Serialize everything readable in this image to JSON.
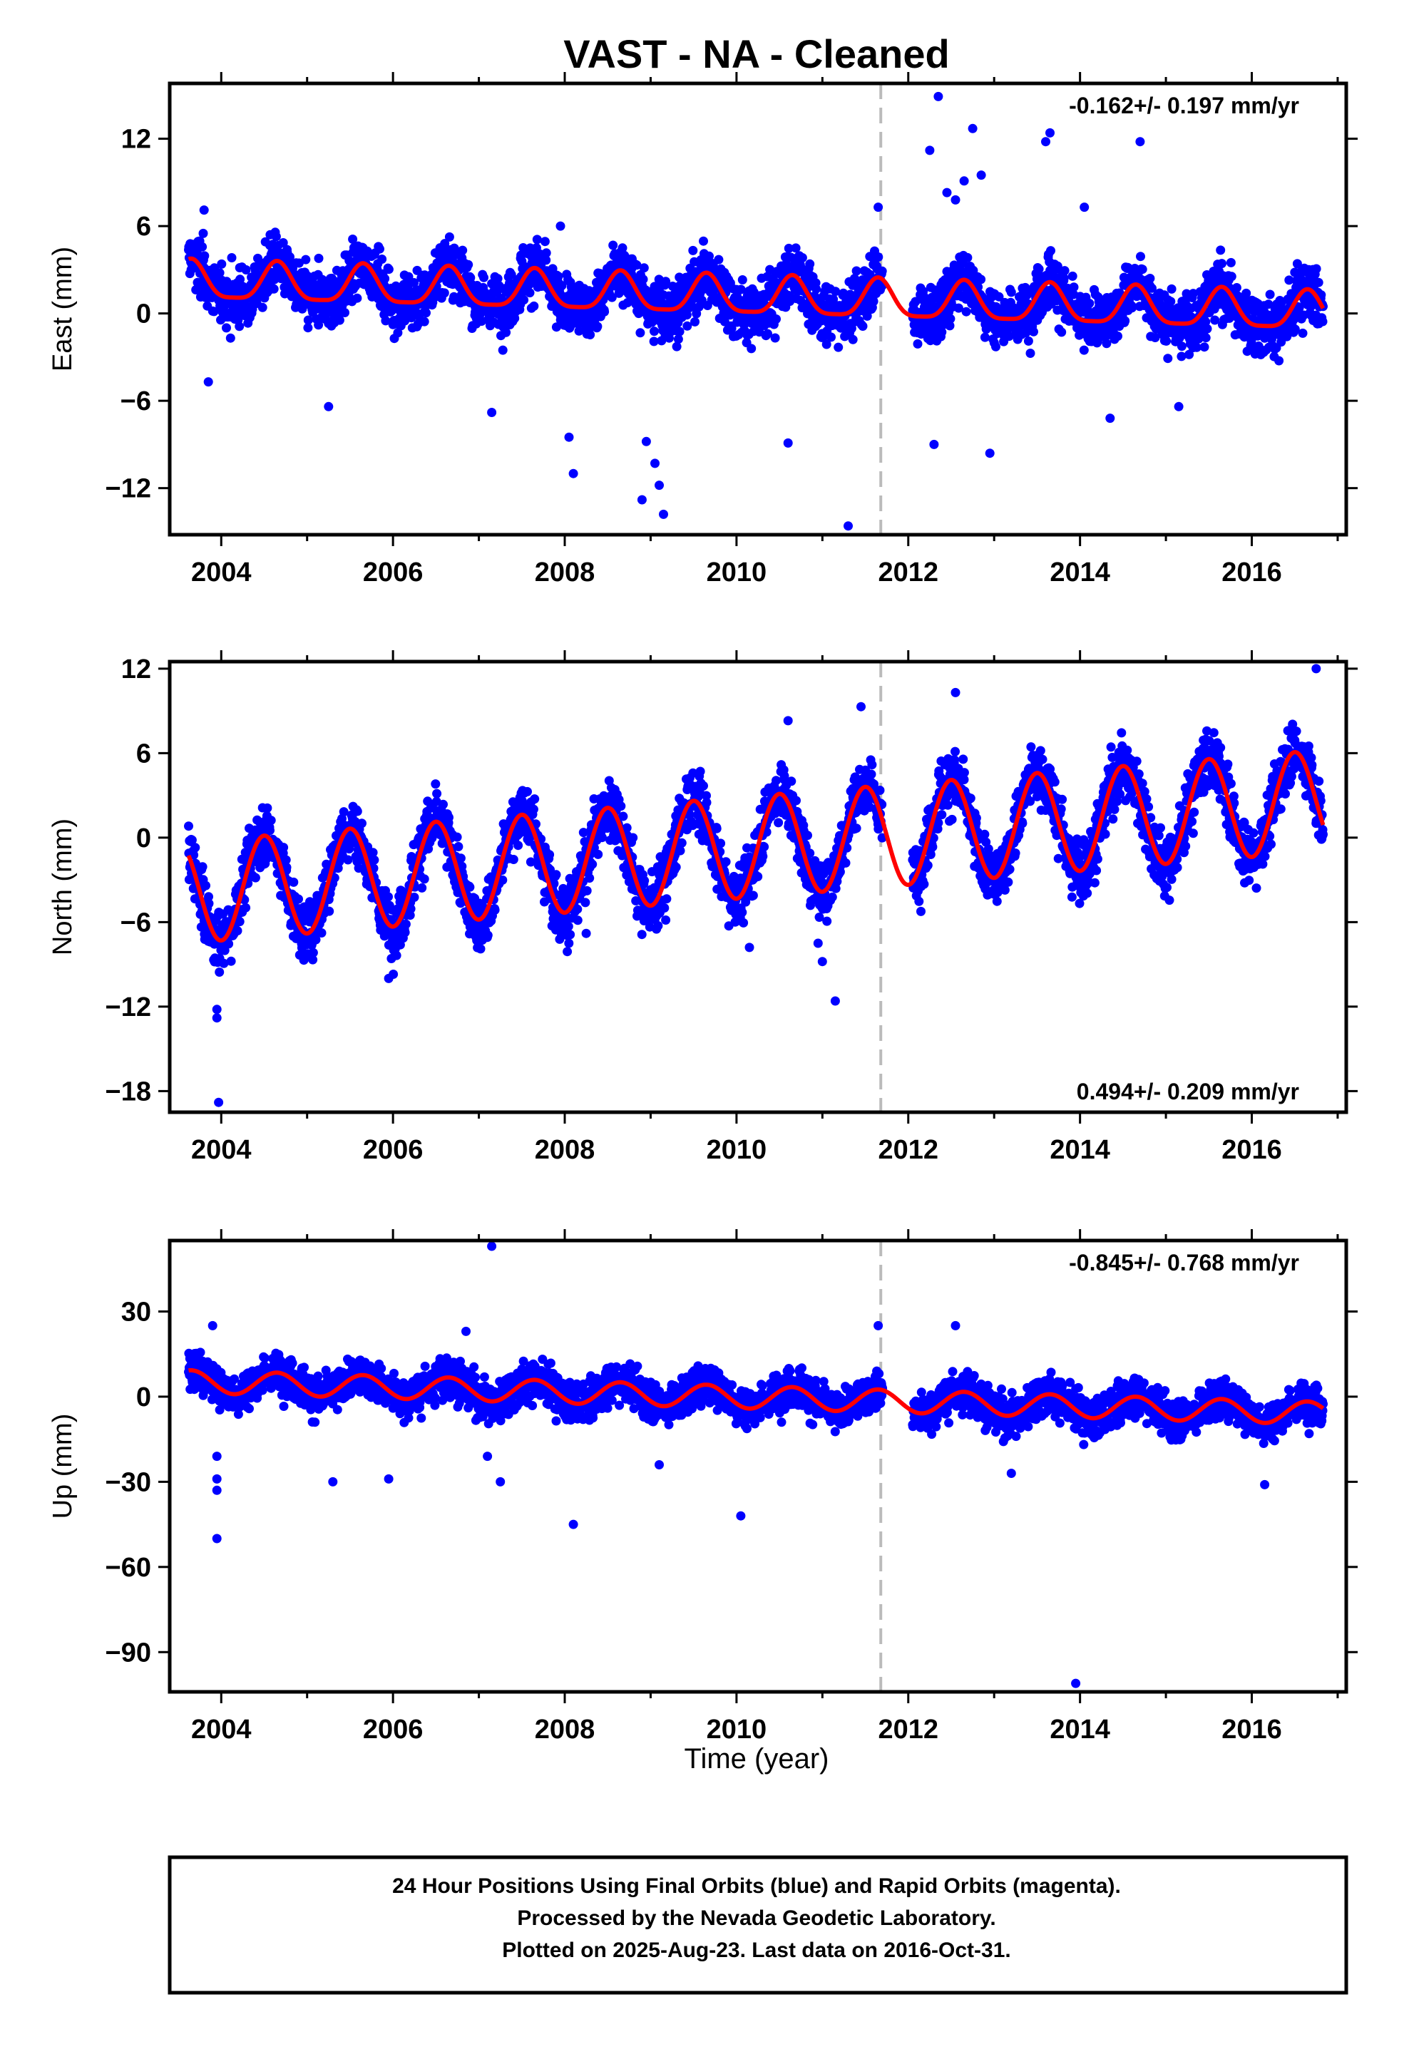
{
  "title": "VAST  - NA - Cleaned",
  "xlabel": "Time (year)",
  "footer": {
    "line1": "24 Hour Positions Using Final Orbits (blue) and Rapid Orbits (magenta).",
    "line2": "Processed by the Nevada Geodetic Laboratory.",
    "line3": "Plotted on 2025-Aug-23. Last data on 2016-Oct-31."
  },
  "colors": {
    "points": "#0000ff",
    "fit": "#ff0000",
    "break_line": "#bbbbbb",
    "frame": "#000000"
  },
  "chart_data": [
    {
      "type": "scatter",
      "ylabel": "East (mm)",
      "rate": "-0.162+/- 0.197 mm/yr",
      "rate_position": "top-right",
      "xlim": [
        2003.4,
        2017.1
      ],
      "ylim": [
        -15.2,
        15.8
      ],
      "yticks": [
        -12,
        -6,
        0,
        6,
        12
      ],
      "xticks": [
        2004,
        2006,
        2008,
        2010,
        2012,
        2014,
        2016
      ],
      "break_year": 2011.68,
      "data_start": 2003.62,
      "data_end": 2016.83,
      "gap": [
        2011.7,
        2012.05
      ],
      "fit": {
        "offset": 1.6,
        "slope": -0.162,
        "amplitude": 1.3,
        "phase_year": 0.65,
        "sharpness": 2.0
      },
      "scatter_sigma": 1.4,
      "outliers": [
        {
          "x": 2003.8,
          "y": 7.1
        },
        {
          "x": 2003.85,
          "y": -4.7
        },
        {
          "x": 2005.25,
          "y": -6.4
        },
        {
          "x": 2007.15,
          "y": -6.8
        },
        {
          "x": 2007.95,
          "y": 6.0
        },
        {
          "x": 2008.05,
          "y": -8.5
        },
        {
          "x": 2008.1,
          "y": -11.0
        },
        {
          "x": 2008.9,
          "y": -12.8
        },
        {
          "x": 2008.95,
          "y": -8.8
        },
        {
          "x": 2009.05,
          "y": -10.3
        },
        {
          "x": 2009.1,
          "y": -11.8
        },
        {
          "x": 2009.15,
          "y": -13.8
        },
        {
          "x": 2010.6,
          "y": -8.9
        },
        {
          "x": 2011.3,
          "y": -14.6
        },
        {
          "x": 2011.65,
          "y": 7.3
        },
        {
          "x": 2012.25,
          "y": 11.2
        },
        {
          "x": 2012.3,
          "y": -9.0
        },
        {
          "x": 2012.35,
          "y": 14.9
        },
        {
          "x": 2012.45,
          "y": 8.3
        },
        {
          "x": 2012.55,
          "y": 7.8
        },
        {
          "x": 2012.65,
          "y": 9.1
        },
        {
          "x": 2012.75,
          "y": 12.7
        },
        {
          "x": 2012.85,
          "y": 9.5
        },
        {
          "x": 2012.95,
          "y": -9.6
        },
        {
          "x": 2013.6,
          "y": 11.8
        },
        {
          "x": 2013.65,
          "y": 12.4
        },
        {
          "x": 2014.05,
          "y": 7.3
        },
        {
          "x": 2014.35,
          "y": -7.2
        },
        {
          "x": 2014.7,
          "y": 11.8
        },
        {
          "x": 2015.15,
          "y": -6.4
        }
      ]
    },
    {
      "type": "scatter",
      "ylabel": "North (mm)",
      "rate": "0.494+/- 0.209 mm/yr",
      "rate_position": "bottom-right",
      "xlim": [
        2003.4,
        2017.1
      ],
      "ylim": [
        -19.5,
        12.5
      ],
      "yticks": [
        -18,
        -12,
        -6,
        0,
        6,
        12
      ],
      "xticks": [
        2004,
        2006,
        2008,
        2010,
        2012,
        2014,
        2016
      ],
      "break_year": 2011.68,
      "data_start": 2003.62,
      "data_end": 2016.83,
      "gap": [
        2011.7,
        2012.05
      ],
      "fit": {
        "offset": -4.0,
        "slope": 0.494,
        "amplitude": 3.6,
        "phase_year": 0.5,
        "sharpness": 1.0
      },
      "scatter_sigma": 1.5,
      "outliers": [
        {
          "x": 2003.95,
          "y": -12.2
        },
        {
          "x": 2003.95,
          "y": -12.8
        },
        {
          "x": 2003.97,
          "y": -18.8
        },
        {
          "x": 2005.95,
          "y": -10.0
        },
        {
          "x": 2008.25,
          "y": -6.8
        },
        {
          "x": 2010.15,
          "y": -7.8
        },
        {
          "x": 2010.95,
          "y": -7.5
        },
        {
          "x": 2011.0,
          "y": -8.8
        },
        {
          "x": 2011.15,
          "y": -11.6
        },
        {
          "x": 2010.6,
          "y": 8.3
        },
        {
          "x": 2011.45,
          "y": 9.3
        },
        {
          "x": 2012.55,
          "y": 10.3
        },
        {
          "x": 2016.75,
          "y": 12.0
        }
      ]
    },
    {
      "type": "scatter",
      "ylabel": "Up (mm)",
      "rate": "-0.845+/- 0.768 mm/yr",
      "rate_position": "top-right",
      "xlim": [
        2003.4,
        2017.1
      ],
      "ylim": [
        -104,
        55
      ],
      "yticks": [
        -90,
        -60,
        -30,
        0,
        30
      ],
      "xticks": [
        2004,
        2006,
        2008,
        2010,
        2012,
        2014,
        2016
      ],
      "break_year": 2011.68,
      "data_start": 2003.62,
      "data_end": 2016.83,
      "gap": [
        2011.7,
        2012.05
      ],
      "fit": {
        "offset": 5.5,
        "slope": -0.845,
        "amplitude": 4.0,
        "phase_year": 0.65,
        "sharpness": 1.0
      },
      "scatter_sigma": 5.0,
      "outliers": [
        {
          "x": 2003.9,
          "y": 25
        },
        {
          "x": 2003.95,
          "y": -21
        },
        {
          "x": 2003.95,
          "y": -29
        },
        {
          "x": 2003.95,
          "y": -33
        },
        {
          "x": 2003.95,
          "y": -50
        },
        {
          "x": 2005.3,
          "y": -30
        },
        {
          "x": 2005.95,
          "y": -29
        },
        {
          "x": 2006.85,
          "y": 23
        },
        {
          "x": 2007.1,
          "y": -21
        },
        {
          "x": 2007.15,
          "y": 53
        },
        {
          "x": 2007.25,
          "y": -30
        },
        {
          "x": 2008.1,
          "y": -45
        },
        {
          "x": 2009.1,
          "y": -24
        },
        {
          "x": 2010.05,
          "y": -42
        },
        {
          "x": 2011.65,
          "y": 25
        },
        {
          "x": 2012.55,
          "y": 25
        },
        {
          "x": 2013.2,
          "y": -27
        },
        {
          "x": 2013.95,
          "y": -101
        },
        {
          "x": 2016.15,
          "y": -31
        }
      ]
    }
  ]
}
